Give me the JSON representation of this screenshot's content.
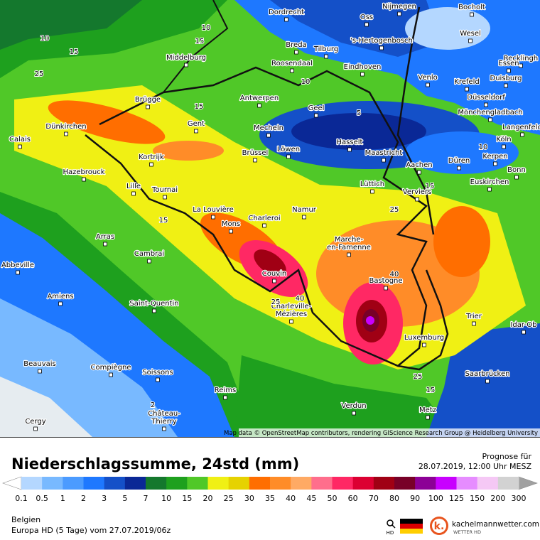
{
  "map": {
    "cities": [
      "Dordrecht",
      "Nijmegen",
      "Bocholt",
      "Oss",
      "Breda",
      "Tilburg",
      "'s-Hertogenbosch",
      "Wesel",
      "Recklingh",
      "Middelburg",
      "Roosendaal",
      "Eindhoven",
      "Venlo",
      "Essen",
      "Duisburg",
      "Krefeld",
      "Antwerpen",
      "Düsseldorf",
      "Brügge",
      "Geel",
      "Mönchengladbach",
      "Gent",
      "Dünkirchen",
      "Mecheln",
      "Langenfeld",
      "Calais",
      "Hasselt",
      "Köln",
      "Brüssel",
      "Löwen",
      "Maastricht",
      "Kortrijk",
      "Kerpen",
      "Düren",
      "Aachen",
      "Hazebrouck",
      "Bonn",
      "Lüttich",
      "Euskirchen",
      "Lille",
      "Tournai",
      "Verviers",
      "La Louvière",
      "Namur",
      "Mons",
      "Charleroi",
      "Arras",
      [
        "Marche-",
        "en-Famenne"
      ],
      "Cambrai",
      "Abbeville",
      "Couvin",
      "Bastogne",
      "Amiens",
      "Saint-Quentin",
      "Trier",
      [
        "Charleville-",
        "Mézières"
      ],
      "Idar-Ob",
      "Luxemburg",
      "Beauvais",
      "Compiègne",
      "Soissons",
      "Saarbrücken",
      "Reims",
      "Verdun",
      [
        "Château-",
        "Thierry"
      ],
      "Metz",
      "Cergy"
    ],
    "contour_labels": [
      10,
      15,
      10,
      15,
      25,
      10,
      15,
      5,
      10,
      15,
      15,
      25,
      40,
      40,
      25,
      25,
      15,
      2
    ],
    "attribution": "Map data © OpenStreetMap contributors, rendering GIScience Research Group @ Heidelberg University"
  },
  "header": {
    "title": "Niederschlagssumme, 24std (mm)",
    "forecast_label": "Prognose für",
    "forecast_time": "28.07.2019, 12:00 Uhr MESZ"
  },
  "legend": {
    "ticks": [
      0.1,
      0.5,
      1,
      2,
      3,
      5,
      7,
      10,
      15,
      20,
      25,
      30,
      35,
      40,
      45,
      50,
      60,
      70,
      80,
      90,
      100,
      125,
      150,
      200,
      300
    ],
    "colors": [
      "#b4d7ff",
      "#78b9ff",
      "#4b9bff",
      "#1e78ff",
      "#1450c8",
      "#0a2896",
      "#14782d",
      "#1ea01e",
      "#50c828",
      "#f0f014",
      "#e6d200",
      "#ff6e00",
      "#ff8c28",
      "#ffaa64",
      "#ff6e8c",
      "#ff2864",
      "#dc0032",
      "#a00014",
      "#780028",
      "#8c0096",
      "#c800ff",
      "#e68cff",
      "#f5c8f5",
      "#d2d2d2"
    ],
    "below_color": "#ffffff",
    "above_color": "#a0a0a0"
  },
  "footer": {
    "region": "Belgien",
    "model": "Europa HD (5 Tage) vom 27.07.2019/06z",
    "zoom_label": "HD",
    "logo": "k.",
    "site": "kachelmannwetter.com",
    "site_sub": "WETTER HD"
  }
}
